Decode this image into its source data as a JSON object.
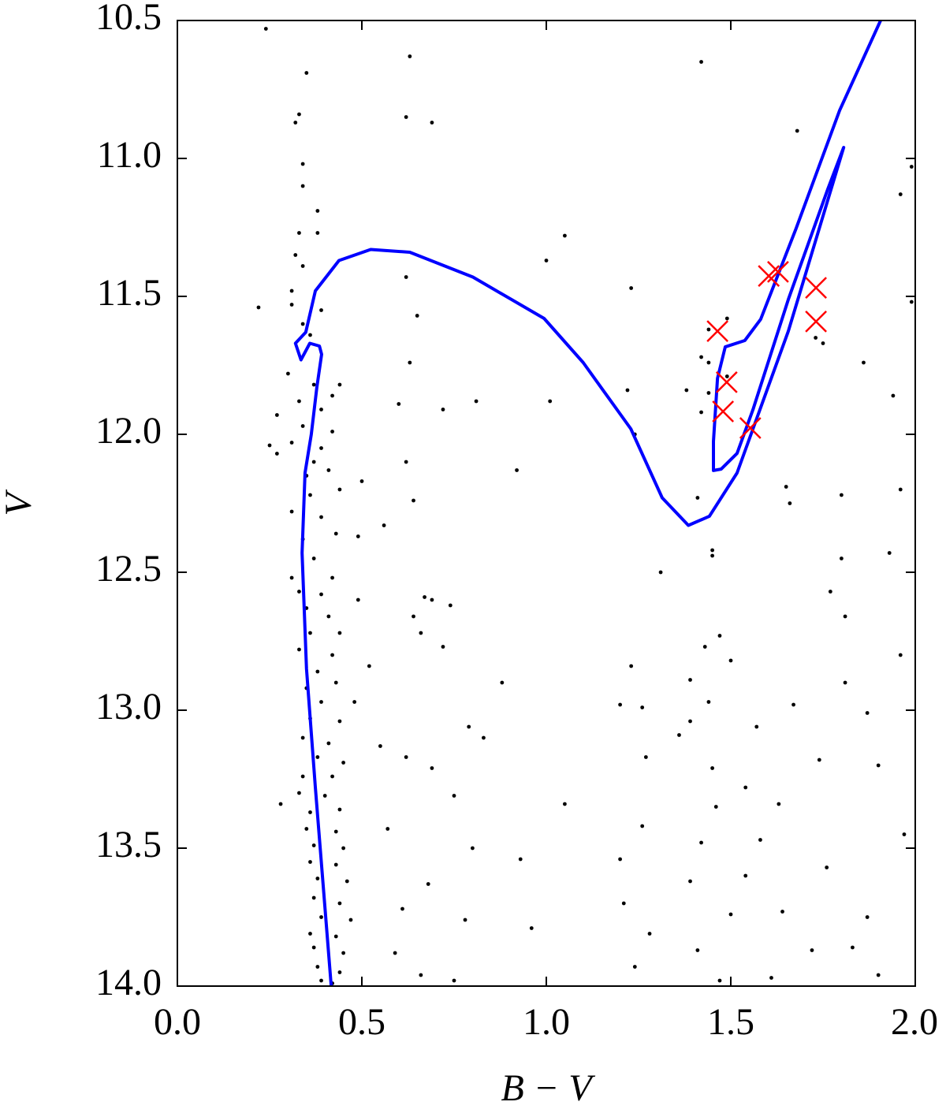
{
  "chart_data": {
    "type": "scatter",
    "xlabel": "B − V",
    "ylabel": "V",
    "xlim": [
      0,
      2
    ],
    "ylim": [
      14,
      10.5
    ],
    "y_inverted": true,
    "xticks": [
      {
        "value": 0,
        "label": "0.0"
      },
      0.5,
      {
        "value": 1,
        "label": "1.0"
      },
      1.5,
      {
        "value": 2,
        "label": "2.0"
      }
    ],
    "yticks": [
      10.5,
      {
        "value": 11,
        "label": "11.0"
      },
      11.5,
      {
        "value": 12,
        "label": "12.0"
      },
      12.5,
      {
        "value": 13,
        "label": "13.0"
      },
      13.5,
      {
        "value": 14,
        "label": "14.0"
      }
    ],
    "series": [
      {
        "type": "scatter",
        "color": "#000000",
        "x": [
          0.24,
          0.63,
          0.35,
          1.42,
          0.33,
          0.32,
          0.62,
          0.69,
          1.68,
          0.34,
          1.99,
          0.34,
          1.96,
          0.38,
          0.33,
          0.38,
          1.05,
          0.32,
          1.0,
          0.34,
          0.62,
          0.31,
          1.23,
          0.22,
          1.99,
          0.31,
          0.39,
          0.65,
          1.49,
          0.34,
          0.36,
          1.44,
          1.73,
          1.75,
          0.63,
          1.42,
          1.44,
          1.49,
          1.86,
          0.3,
          0.37,
          0.44,
          1.22,
          1.38,
          1.44,
          0.33,
          0.42,
          0.6,
          0.81,
          1.01,
          0.27,
          0.39,
          0.72,
          1.42,
          1.94,
          0.34,
          0.42,
          1.24,
          0.31,
          0.39,
          0.25,
          0.27,
          0.37,
          0.62,
          0.41,
          0.92,
          0.35,
          0.5,
          1.65,
          1.96,
          0.36,
          0.44,
          1.8,
          0.64,
          1.41,
          1.66,
          0.31,
          0.39,
          0.56,
          0.43,
          0.34,
          0.49,
          1.45,
          1.45,
          1.8,
          0.37,
          0.31,
          0.42,
          1.31,
          1.93,
          0.33,
          0.39,
          0.49,
          0.67,
          0.69,
          1.77,
          0.35,
          0.41,
          0.64,
          0.74,
          0.36,
          0.44,
          0.66,
          1.81,
          0.33,
          0.42,
          0.72,
          1.47,
          1.96,
          0.38,
          0.52,
          1.23,
          1.43,
          1.5,
          0.35,
          0.43,
          0.88,
          1.39,
          1.81,
          0.39,
          0.48,
          1.2,
          1.26,
          1.44,
          1.67,
          1.87,
          0.36,
          0.44,
          0.79,
          1.39,
          0.34,
          0.41,
          0.55,
          0.83,
          1.36,
          1.57,
          0.38,
          0.45,
          0.62,
          1.74,
          0.34,
          0.42,
          0.69,
          1.27,
          1.45,
          1.9,
          0.33,
          0.4,
          0.75,
          1.54,
          0.36,
          0.44,
          1.05,
          1.46,
          1.63,
          0.28,
          0.35,
          0.43,
          0.57,
          1.26,
          0.37,
          0.45,
          0.8,
          1.42,
          1.58,
          1.97,
          0.36,
          0.43,
          0.93,
          1.2,
          0.38,
          0.46,
          0.68,
          1.39,
          1.54,
          1.76,
          0.37,
          0.44,
          0.61,
          1.21,
          0.39,
          0.47,
          0.78,
          1.5,
          1.64,
          1.87,
          0.36,
          0.43,
          0.96,
          1.28,
          0.37,
          0.45,
          0.59,
          1.41,
          1.72,
          1.83,
          0.38,
          0.44,
          0.66,
          1.24,
          0.39,
          0.42,
          0.75,
          1.47,
          1.61,
          1.9
        ],
        "values": [
          10.53,
          10.63,
          10.69,
          10.65,
          10.84,
          10.87,
          10.85,
          10.87,
          10.9,
          11.02,
          11.03,
          11.1,
          11.13,
          11.19,
          11.27,
          11.27,
          11.28,
          11.35,
          11.37,
          11.39,
          11.43,
          11.48,
          11.47,
          11.54,
          11.52,
          11.53,
          11.55,
          11.57,
          11.58,
          11.6,
          11.64,
          11.62,
          11.65,
          11.67,
          11.74,
          11.72,
          11.74,
          11.79,
          11.74,
          11.78,
          11.82,
          11.82,
          11.84,
          11.84,
          11.85,
          11.88,
          11.86,
          11.89,
          11.88,
          11.88,
          11.93,
          11.91,
          11.91,
          11.92,
          11.86,
          11.97,
          11.99,
          12.0,
          12.03,
          12.05,
          12.04,
          12.07,
          12.1,
          12.1,
          12.13,
          12.13,
          12.15,
          12.17,
          12.19,
          12.2,
          12.22,
          12.2,
          12.22,
          12.24,
          12.23,
          12.25,
          12.28,
          12.3,
          12.33,
          12.36,
          12.38,
          12.37,
          12.42,
          12.44,
          12.45,
          12.45,
          12.52,
          12.52,
          12.5,
          12.43,
          12.57,
          12.58,
          12.6,
          12.59,
          12.6,
          12.57,
          12.63,
          12.66,
          12.66,
          12.62,
          12.72,
          12.72,
          12.72,
          12.66,
          12.78,
          12.8,
          12.77,
          12.73,
          12.8,
          12.86,
          12.84,
          12.84,
          12.77,
          12.82,
          12.92,
          12.9,
          12.9,
          12.89,
          12.9,
          12.97,
          12.97,
          12.98,
          12.99,
          12.97,
          12.98,
          13.01,
          13.03,
          13.04,
          13.06,
          13.04,
          13.1,
          13.12,
          13.13,
          13.1,
          13.09,
          13.06,
          13.17,
          13.19,
          13.17,
          13.18,
          13.24,
          13.24,
          13.21,
          13.17,
          13.21,
          13.2,
          13.3,
          13.31,
          13.31,
          13.28,
          13.37,
          13.36,
          13.34,
          13.35,
          13.34,
          13.34,
          13.43,
          13.44,
          13.43,
          13.42,
          13.49,
          13.5,
          13.5,
          13.48,
          13.47,
          13.45,
          13.55,
          13.56,
          13.54,
          13.54,
          13.61,
          13.62,
          13.63,
          13.62,
          13.6,
          13.57,
          13.68,
          13.7,
          13.72,
          13.7,
          13.75,
          13.76,
          13.76,
          13.74,
          13.73,
          13.75,
          13.81,
          13.82,
          13.79,
          13.81,
          13.86,
          13.88,
          13.88,
          13.87,
          13.87,
          13.86,
          13.93,
          13.95,
          13.96,
          13.93,
          13.98,
          13.99,
          13.98,
          13.98,
          13.97,
          13.96
        ]
      },
      {
        "type": "line",
        "color": "#0000ff",
        "x": [
          0.417,
          0.374,
          0.35,
          0.338,
          0.346,
          0.363,
          0.378,
          0.391,
          0.385,
          0.359,
          0.335,
          0.32,
          0.348,
          0.374,
          0.438,
          0.524,
          0.63,
          0.801,
          0.994,
          1.1,
          1.229,
          1.314,
          1.385,
          1.442,
          1.517,
          1.571,
          1.656,
          1.806,
          1.763,
          1.656,
          1.56,
          1.517,
          1.474,
          1.453,
          1.453,
          1.464,
          1.485,
          1.538,
          1.581,
          1.677,
          1.795,
          1.906
        ],
        "values": [
          14.0,
          13.28,
          12.85,
          12.43,
          12.14,
          12.0,
          11.83,
          11.71,
          11.68,
          11.67,
          11.73,
          11.67,
          11.63,
          11.48,
          11.37,
          11.33,
          11.34,
          11.43,
          11.58,
          11.74,
          11.98,
          12.23,
          12.33,
          12.297,
          12.14,
          11.94,
          11.626,
          10.96,
          11.111,
          11.511,
          11.911,
          12.069,
          12.126,
          12.131,
          12.026,
          11.797,
          11.683,
          11.66,
          11.583,
          11.254,
          10.826,
          10.5
        ]
      },
      {
        "type": "scatter",
        "marker": "x",
        "color": "#ff0000",
        "x": [
          1.464,
          1.489,
          1.479,
          1.553,
          1.603,
          1.628,
          1.731,
          1.731
        ],
        "values": [
          11.626,
          11.811,
          11.917,
          11.977,
          11.426,
          11.411,
          11.469,
          11.591
        ]
      }
    ]
  }
}
